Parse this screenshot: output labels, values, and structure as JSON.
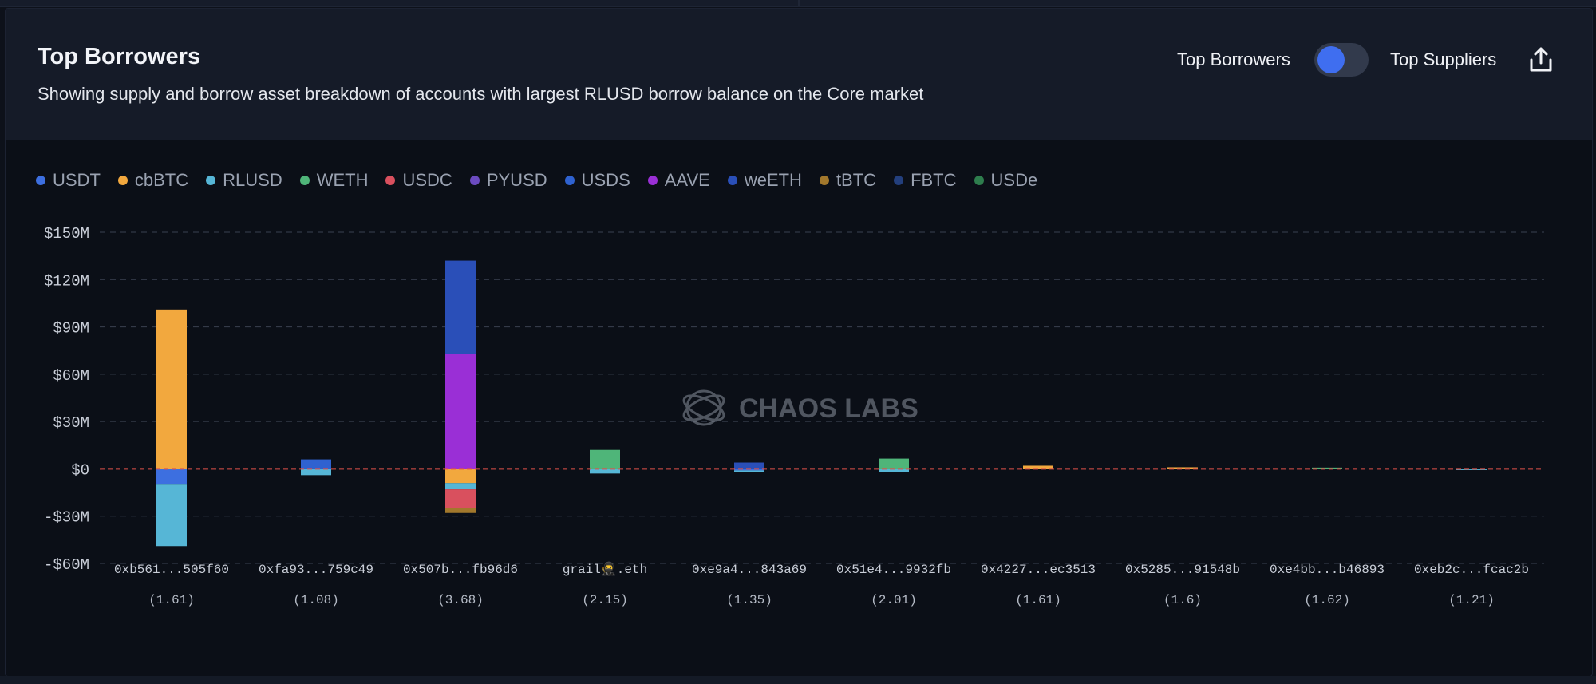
{
  "header": {
    "title": "Top Borrowers",
    "subtitle": "Showing supply and borrow asset breakdown of accounts with largest RLUSD borrow balance on the Core market",
    "toggle_left_label": "Top Borrowers",
    "toggle_right_label": "Top Suppliers",
    "toggle_state": "Top Borrowers",
    "share_icon": "share-icon"
  },
  "watermark": {
    "text": "CHAOS LABS",
    "icon": "chaos-labs-logo-icon"
  },
  "colors": {
    "USDT": "#3d6fe0",
    "cbBTC": "#f2a83e",
    "RLUSD": "#56b6d6",
    "WETH": "#4fb579",
    "USDC": "#d9505e",
    "PYUSD": "#6b4bc0",
    "USDS": "#2f62d0",
    "AAVE": "#9a2fd6",
    "weETH": "#2a4fb8",
    "tBTC": "#a2782c",
    "FBTC": "#233f7d",
    "USDe": "#2e7d4d",
    "zero_line": "#e0504a",
    "grid": "#3a4150",
    "tick_text": "#c9ced8",
    "ratio_text": "#b5bbc6"
  },
  "legend": [
    {
      "name": "USDT",
      "color": "#3d6fe0"
    },
    {
      "name": "cbBTC",
      "color": "#f2a83e"
    },
    {
      "name": "RLUSD",
      "color": "#56b6d6"
    },
    {
      "name": "WETH",
      "color": "#4fb579"
    },
    {
      "name": "USDC",
      "color": "#d9505e"
    },
    {
      "name": "PYUSD",
      "color": "#6b4bc0"
    },
    {
      "name": "USDS",
      "color": "#2f62d0"
    },
    {
      "name": "AAVE",
      "color": "#9a2fd6"
    },
    {
      "name": "weETH",
      "color": "#2a4fb8"
    },
    {
      "name": "tBTC",
      "color": "#a2782c"
    },
    {
      "name": "FBTC",
      "color": "#233f7d"
    },
    {
      "name": "USDe",
      "color": "#2e7d4d"
    }
  ],
  "chart_data": {
    "type": "bar",
    "stacked": true,
    "title": "Top Borrowers",
    "ylim": [
      -60,
      150
    ],
    "y_ticks": [
      {
        "value": 150,
        "label": "$150M"
      },
      {
        "value": 120,
        "label": "$120M"
      },
      {
        "value": 90,
        "label": "$90M"
      },
      {
        "value": 60,
        "label": "$60M"
      },
      {
        "value": 30,
        "label": "$30M"
      },
      {
        "value": 0,
        "label": "$0"
      },
      {
        "value": -30,
        "label": "-$30M"
      },
      {
        "value": -60,
        "label": "-$60M"
      }
    ],
    "grid": true,
    "zero_line": true,
    "legend_position": "top-left",
    "categories": [
      {
        "address": "0xb561...505f60",
        "ratio": "(1.61)"
      },
      {
        "address": "0xfa93...759c49",
        "ratio": "(1.08)"
      },
      {
        "address": "0x507b...fb96d6",
        "ratio": "(3.68)"
      },
      {
        "address": "grail🥷.eth",
        "ratio": "(2.15)"
      },
      {
        "address": "0xe9a4...843a69",
        "ratio": "(1.35)"
      },
      {
        "address": "0x51e4...9932fb",
        "ratio": "(2.01)"
      },
      {
        "address": "0x4227...ec3513",
        "ratio": "(1.61)"
      },
      {
        "address": "0x5285...91548b",
        "ratio": "(1.6)"
      },
      {
        "address": "0xe4bb...b46893",
        "ratio": "(1.62)"
      },
      {
        "address": "0xeb2c...fcac2b",
        "ratio": "(1.21)"
      }
    ],
    "series": [
      {
        "name": "USDT",
        "values": [
          -10,
          0,
          0,
          0,
          -1,
          0,
          0,
          0,
          0,
          0
        ]
      },
      {
        "name": "cbBTC",
        "values": [
          101,
          0,
          -9,
          0,
          0,
          0,
          2,
          1,
          0,
          0
        ]
      },
      {
        "name": "RLUSD",
        "values": [
          -39,
          -4,
          -4,
          -3,
          -1,
          -2,
          0,
          0,
          0,
          -0.5
        ]
      },
      {
        "name": "WETH",
        "values": [
          0,
          0,
          0,
          12,
          0,
          6.5,
          0,
          0,
          0.8,
          0
        ]
      },
      {
        "name": "USDC",
        "values": [
          0,
          0,
          -12,
          0,
          0,
          0,
          0,
          0,
          0,
          0
        ]
      },
      {
        "name": "PYUSD",
        "values": [
          0,
          0,
          0,
          0,
          0,
          0,
          0,
          0,
          0,
          0
        ]
      },
      {
        "name": "USDS",
        "values": [
          0,
          6,
          0,
          0,
          0,
          0,
          0,
          0,
          0,
          0
        ]
      },
      {
        "name": "AAVE",
        "values": [
          0,
          0,
          73,
          0,
          0,
          0,
          0,
          0,
          0,
          0
        ]
      },
      {
        "name": "weETH",
        "values": [
          0,
          0,
          59,
          0,
          4,
          0,
          0,
          0,
          0,
          0
        ]
      },
      {
        "name": "tBTC",
        "values": [
          0,
          0,
          -3,
          0,
          0,
          0,
          0,
          0,
          0,
          0
        ]
      },
      {
        "name": "FBTC",
        "values": [
          0,
          0,
          0,
          0,
          0,
          0,
          0,
          0,
          0,
          0
        ]
      },
      {
        "name": "USDe",
        "values": [
          0,
          0,
          0,
          0,
          0,
          0,
          0,
          0,
          0,
          0
        ]
      }
    ]
  }
}
